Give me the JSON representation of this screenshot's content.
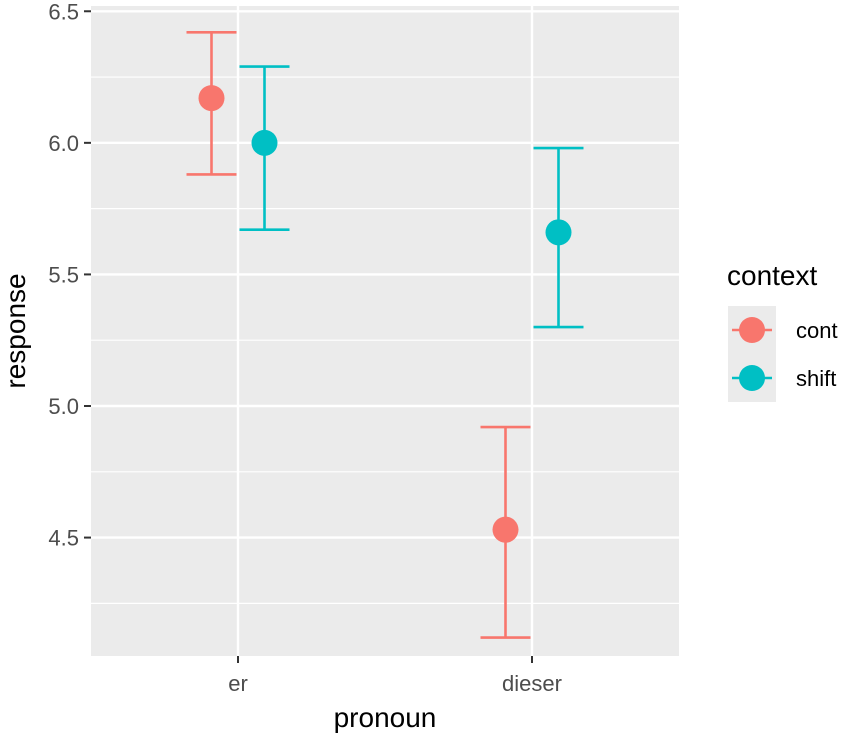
{
  "chart_data": {
    "type": "scatter",
    "title": "",
    "xlabel": "pronoun",
    "ylabel": "response",
    "categories": [
      "er",
      "dieser"
    ],
    "ylim": [
      4.05,
      6.52
    ],
    "yticks": [
      4.5,
      5.0,
      5.5,
      6.0,
      6.5
    ],
    "ytick_labels": [
      "4.5",
      "5.0",
      "5.5",
      "6.0",
      "6.5"
    ],
    "grid": true,
    "legend": {
      "title": "context",
      "position": "right"
    },
    "series": [
      {
        "name": "cont",
        "color": "#F8766D",
        "points": [
          {
            "category": "er",
            "y": 6.17,
            "ymin": 5.88,
            "ymax": 6.42
          },
          {
            "category": "dieser",
            "y": 4.53,
            "ymin": 4.12,
            "ymax": 4.92
          }
        ]
      },
      {
        "name": "shift",
        "color": "#00BFC4",
        "points": [
          {
            "category": "er",
            "y": 6.0,
            "ymin": 5.67,
            "ymax": 6.29
          },
          {
            "category": "dieser",
            "y": 5.66,
            "ymin": 5.3,
            "ymax": 5.98
          }
        ]
      }
    ]
  }
}
